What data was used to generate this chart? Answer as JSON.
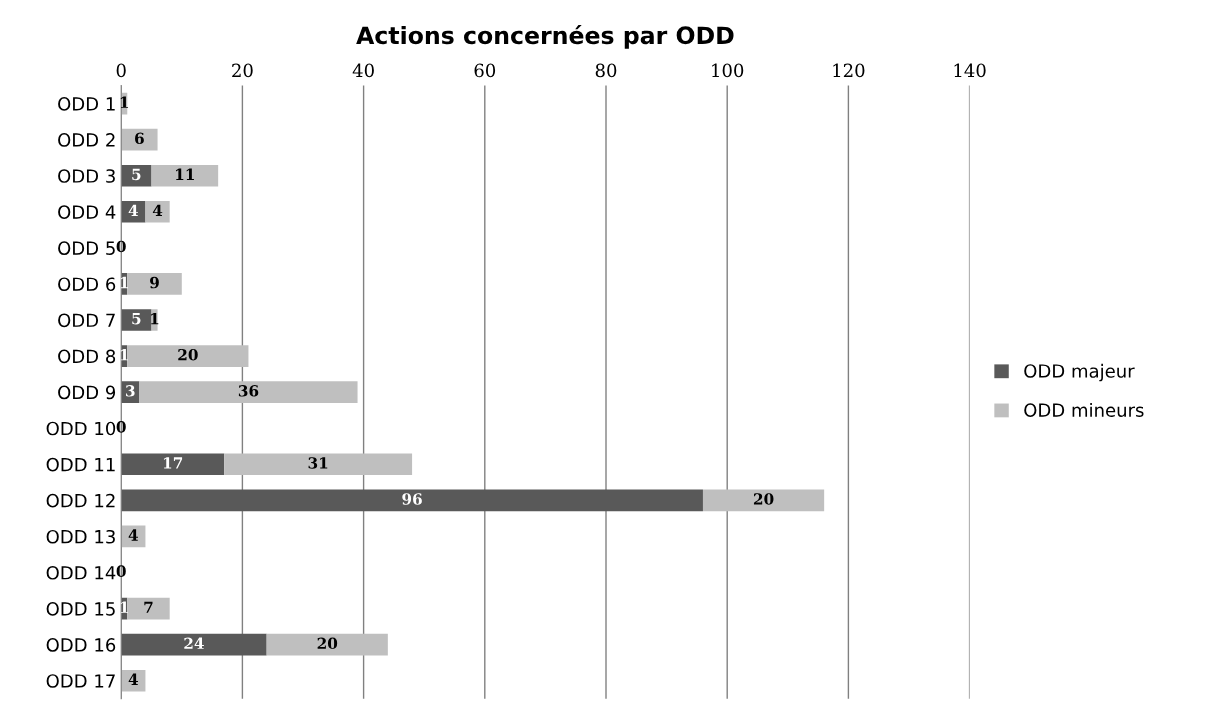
{
  "chart_data": {
    "type": "bar",
    "orientation": "horizontal",
    "stacked": true,
    "title": "Actions concernées par ODD",
    "categories": [
      "ODD 1",
      "ODD 2",
      "ODD 3",
      "ODD 4",
      "ODD 5",
      "ODD 6",
      "ODD 7",
      "ODD 8",
      "ODD 9",
      "ODD 10",
      "ODD 11",
      "ODD 12",
      "ODD 13",
      "ODD 14",
      "ODD 15",
      "ODD 16",
      "ODD 17"
    ],
    "series": [
      {
        "name": "ODD majeur",
        "color": "#595959",
        "values": [
          0,
          0,
          5,
          4,
          0,
          1,
          5,
          1,
          3,
          0,
          17,
          96,
          0,
          0,
          1,
          24,
          0
        ],
        "value_labels": [
          null,
          null,
          "5",
          "4",
          null,
          "1",
          "5",
          "1",
          "3",
          null,
          "17",
          "96",
          null,
          null,
          "1",
          "24",
          null
        ]
      },
      {
        "name": "ODD mineurs",
        "color": "#bfbfbf",
        "values": [
          1,
          6,
          11,
          4,
          0,
          9,
          1,
          20,
          36,
          0,
          31,
          20,
          4,
          0,
          7,
          20,
          4
        ],
        "value_labels": [
          "1",
          "6",
          "11",
          "4",
          "0",
          "9",
          "1",
          "20",
          "36",
          "0",
          "31",
          "20",
          "4",
          "0",
          "7",
          "20",
          "4"
        ]
      }
    ],
    "xlim": [
      0,
      140
    ],
    "xticks": [
      0,
      20,
      40,
      60,
      80,
      100,
      120,
      140
    ],
    "grid": "x",
    "legend": "right"
  }
}
